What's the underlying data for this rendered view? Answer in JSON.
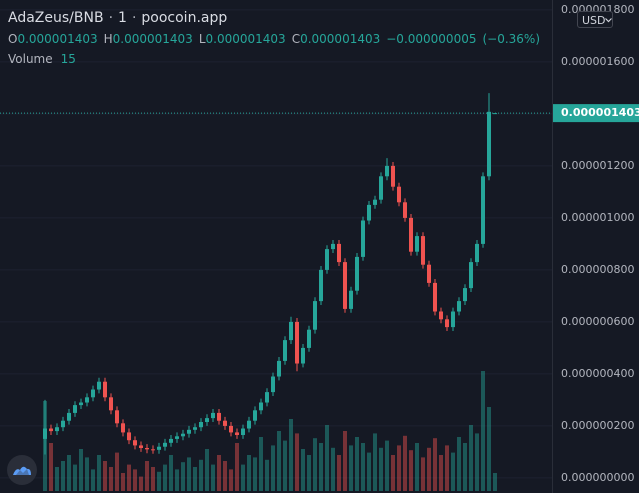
{
  "chart_data": {
    "type": "candlestick",
    "header": {
      "symbol": "AdaZeus/BNB",
      "separator": "·",
      "interval": "1",
      "source": "poocoin.app",
      "open_key": "O",
      "open": {
        "value": 1.403e-06,
        "label": "0.000001403"
      },
      "high_key": "H",
      "high": {
        "value": 1.403e-06,
        "label": "0.000001403"
      },
      "low_key": "L",
      "low": {
        "value": 1.403e-06,
        "label": "0.000001403"
      },
      "close_key": "C",
      "close": {
        "value": 1.403e-06,
        "label": "0.000001403"
      },
      "change": {
        "value": -5e-09,
        "label": "−0.000000005"
      },
      "change_pct": {
        "value": -0.36,
        "label": "(−0.36%)"
      },
      "volume_key": "Volume"
    },
    "currency": "USD",
    "up_color": "#26a69a",
    "down_color": "#ef5350",
    "grid": true,
    "ylim": [
      -5.8e-08,
      1.838e-06
    ],
    "yticks": [
      {
        "value": 0,
        "label": "0.000000000"
      },
      {
        "value": 2e-07,
        "label": "0.000000200"
      },
      {
        "value": 4e-07,
        "label": "0.000000400"
      },
      {
        "value": 6e-07,
        "label": "0.000000600"
      },
      {
        "value": 8e-07,
        "label": "0.000000800"
      },
      {
        "value": 1e-06,
        "label": "0.000001000"
      },
      {
        "value": 1.2e-06,
        "label": "0.000001200"
      },
      {
        "value": 1.4e-06,
        "label": "0.000001400"
      },
      {
        "value": 1.6e-06,
        "label": "0.000001600"
      },
      {
        "value": 1.8e-06,
        "label": "0.000001800"
      }
    ],
    "last_price": {
      "value": 1.403e-06,
      "label": "0.000001403"
    },
    "vlim": [
      0,
      150
    ],
    "open": [
      1.5e-07,
      1.9e-07,
      1.8e-07,
      1.95e-07,
      2.2e-07,
      2.5e-07,
      2.8e-07,
      2.9e-07,
      3.1e-07,
      3.4e-07,
      3.7e-07,
      3.1e-07,
      2.6e-07,
      2.1e-07,
      1.75e-07,
      1.45e-07,
      1.25e-07,
      1.15e-07,
      1.1e-07,
      1.08e-07,
      1.2e-07,
      1.35e-07,
      1.5e-07,
      1.6e-07,
      1.7e-07,
      1.85e-07,
      1.95e-07,
      2.15e-07,
      2.3e-07,
      2.5e-07,
      2.2e-07,
      2e-07,
      1.75e-07,
      1.65e-07,
      1.9e-07,
      2.2e-07,
      2.6e-07,
      2.9e-07,
      3.3e-07,
      3.9e-07,
      4.5e-07,
      5.3e-07,
      6e-07,
      4.4e-07,
      5e-07,
      5.7e-07,
      6.8e-07,
      8e-07,
      8.8e-07,
      9e-07,
      8.3e-07,
      6.5e-07,
      7.2e-07,
      8.5e-07,
      9.9e-07,
      1.05e-06,
      1.07e-06,
      1.16e-06,
      1.2e-06,
      1.12e-06,
      1.06e-06,
      1e-06,
      8.7e-07,
      9.3e-07,
      8.2e-07,
      7.5e-07,
      6.4e-07,
      6.1e-07,
      5.8e-07,
      6.4e-07,
      6.8e-07,
      7.3e-07,
      8.3e-07,
      9e-07,
      1.16e-06,
      1.403e-06
    ],
    "high": [
      3e-07,
      2.05e-07,
      2.1e-07,
      2.35e-07,
      2.65e-07,
      2.95e-07,
      3.05e-07,
      3.25e-07,
      3.55e-07,
      3.85e-07,
      3.85e-07,
      3.25e-07,
      2.75e-07,
      2.25e-07,
      1.9e-07,
      1.6e-07,
      1.4e-07,
      1.3e-07,
      1.25e-07,
      1.35e-07,
      1.5e-07,
      1.65e-07,
      1.75e-07,
      1.85e-07,
      2e-07,
      2.1e-07,
      2.3e-07,
      2.45e-07,
      2.65e-07,
      2.65e-07,
      2.35e-07,
      2.15e-07,
      1.9e-07,
      2.05e-07,
      2.35e-07,
      2.75e-07,
      3.05e-07,
      3.45e-07,
      4.05e-07,
      4.65e-07,
      5.45e-07,
      6.2e-07,
      6.15e-07,
      5.15e-07,
      5.85e-07,
      6.95e-07,
      8.15e-07,
      8.95e-07,
      9.15e-07,
      9.15e-07,
      8.45e-07,
      7.35e-07,
      8.65e-07,
      1.005e-06,
      1.065e-06,
      1.085e-06,
      1.175e-06,
      1.23e-06,
      1.215e-06,
      1.135e-06,
      1.075e-06,
      1.015e-06,
      9.45e-07,
      9.45e-07,
      8.35e-07,
      7.65e-07,
      6.55e-07,
      6.25e-07,
      6.55e-07,
      6.95e-07,
      7.45e-07,
      8.45e-07,
      9.15e-07,
      1.175e-06,
      1.48e-06,
      1.403e-06
    ],
    "low": [
      9e-08,
      1.65e-07,
      1.65e-07,
      1.8e-07,
      2.05e-07,
      2.35e-07,
      2.65e-07,
      2.75e-07,
      2.95e-07,
      3.25e-07,
      2.95e-07,
      2.45e-07,
      1.95e-07,
      1.6e-07,
      1.3e-07,
      1.1e-07,
      1e-07,
      9.5e-08,
      9.3e-08,
      9.3e-08,
      1.05e-07,
      1.2e-07,
      1.35e-07,
      1.45e-07,
      1.55e-07,
      1.7e-07,
      1.8e-07,
      2e-07,
      2.15e-07,
      2.05e-07,
      1.85e-07,
      1.6e-07,
      1.5e-07,
      1.5e-07,
      1.75e-07,
      2.05e-07,
      2.45e-07,
      2.75e-07,
      3.15e-07,
      3.75e-07,
      4.35e-07,
      5.15e-07,
      4.1e-07,
      4.25e-07,
      4.85e-07,
      5.55e-07,
      6.65e-07,
      7.85e-07,
      8.65e-07,
      8.15e-07,
      6.35e-07,
      6.35e-07,
      7.05e-07,
      8.35e-07,
      9.75e-07,
      1.035e-06,
      1.055e-06,
      1.145e-06,
      1.105e-06,
      1.045e-06,
      9.85e-07,
      8.55e-07,
      8.55e-07,
      8.05e-07,
      7.35e-07,
      6.25e-07,
      5.95e-07,
      5.65e-07,
      5.65e-07,
      6.25e-07,
      6.65e-07,
      7.15e-07,
      8.15e-07,
      8.85e-07,
      1.145e-06,
      1.403e-06
    ],
    "close": [
      1.9e-07,
      1.8e-07,
      1.95e-07,
      2.2e-07,
      2.5e-07,
      2.8e-07,
      2.9e-07,
      3.1e-07,
      3.4e-07,
      3.7e-07,
      3.1e-07,
      2.6e-07,
      2.1e-07,
      1.75e-07,
      1.45e-07,
      1.25e-07,
      1.15e-07,
      1.1e-07,
      1.08e-07,
      1.2e-07,
      1.35e-07,
      1.5e-07,
      1.6e-07,
      1.7e-07,
      1.85e-07,
      1.95e-07,
      2.15e-07,
      2.3e-07,
      2.5e-07,
      2.2e-07,
      2e-07,
      1.75e-07,
      1.65e-07,
      1.9e-07,
      2.2e-07,
      2.6e-07,
      2.9e-07,
      3.3e-07,
      3.9e-07,
      4.5e-07,
      5.3e-07,
      6e-07,
      4.4e-07,
      5e-07,
      5.7e-07,
      6.8e-07,
      8e-07,
      8.8e-07,
      9e-07,
      8.3e-07,
      6.5e-07,
      7.2e-07,
      8.5e-07,
      9.9e-07,
      1.05e-06,
      1.07e-06,
      1.16e-06,
      1.2e-06,
      1.12e-06,
      1.06e-06,
      1e-06,
      8.7e-07,
      9.3e-07,
      8.2e-07,
      7.5e-07,
      6.4e-07,
      6.1e-07,
      5.8e-07,
      6.4e-07,
      6.8e-07,
      7.3e-07,
      8.3e-07,
      9e-07,
      1.16e-06,
      1.408e-06,
      1.403e-06
    ],
    "volume": [
      75,
      40,
      20,
      25,
      30,
      22,
      35,
      28,
      18,
      30,
      25,
      20,
      32,
      15,
      22,
      18,
      12,
      25,
      20,
      16,
      22,
      30,
      18,
      24,
      28,
      20,
      26,
      35,
      22,
      30,
      25,
      18,
      40,
      22,
      30,
      28,
      45,
      26,
      38,
      50,
      42,
      60,
      48,
      35,
      30,
      44,
      40,
      55,
      36,
      30,
      50,
      38,
      45,
      40,
      32,
      48,
      36,
      42,
      30,
      38,
      46,
      34,
      40,
      28,
      36,
      44,
      30,
      38,
      32,
      45,
      40,
      55,
      48,
      100,
      70,
      15
    ]
  }
}
